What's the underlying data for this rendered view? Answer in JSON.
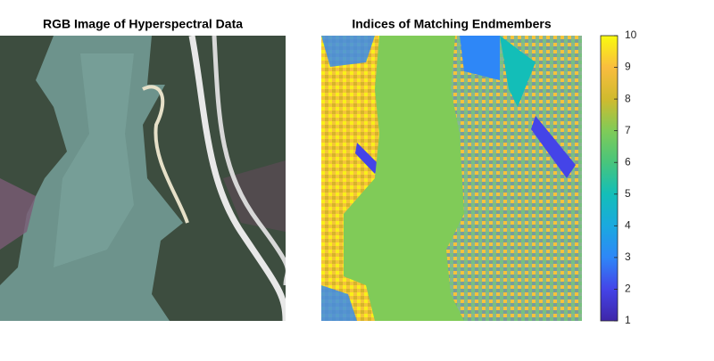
{
  "chart_data": [
    {
      "type": "image",
      "title": "RGB Image of Hyperspectral Data"
    },
    {
      "type": "heatmap",
      "title": "Indices of Matching Endmembers",
      "ylim": [
        1,
        10
      ],
      "yticks": [
        1,
        2,
        3,
        4,
        5,
        6,
        7,
        8,
        9,
        10
      ],
      "colormap": [
        "#3e26a8",
        "#4444e8",
        "#2e87f7",
        "#1aa9df",
        "#13beb8",
        "#48c57c",
        "#80cb58",
        "#d0ba2e",
        "#f9bd3f",
        "#f9fb0e"
      ]
    }
  ]
}
